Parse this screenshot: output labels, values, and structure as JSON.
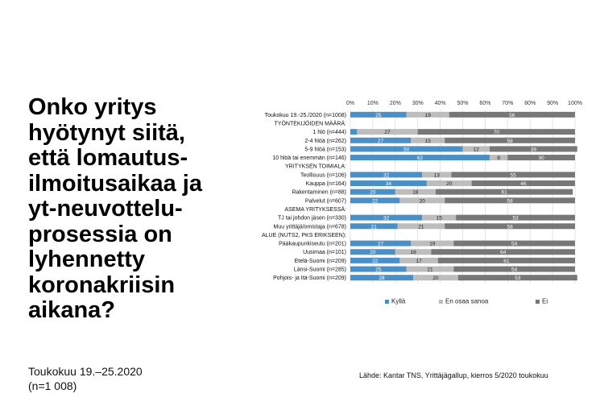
{
  "page": {
    "title": "Onko yritys\nhyötynyt siitä,\nettä lomautus-\nilmoitusaikaa ja\nyt-neuvottelu-\nprosessia on\nlyhennetty\nkoronakriisin\naikana?",
    "subtitle": "Toukokuu 19.–25.2020\n(n=1 008)",
    "source": "Lähde: Kantar TNS, Yrittäjägallup, kierros 5/2020 toukokuu"
  },
  "colors": {
    "kylla": "#4a90c8",
    "en_osaa": "#bdbdbd",
    "ei": "#777777",
    "grid": "#d9d9d9"
  },
  "chart_data": {
    "type": "bar",
    "orientation": "horizontal",
    "stacked": true,
    "xlim": [
      0,
      100
    ],
    "x_ticks": [
      "0%",
      "10%",
      "20%",
      "30%",
      "40%",
      "50%",
      "60%",
      "70%",
      "80%",
      "90%",
      "100%"
    ],
    "legend_position": "bottom",
    "series": [
      {
        "name": "Kyllä",
        "color": "#4a90c8"
      },
      {
        "name": "En osaa sanoa",
        "color": "#bdbdbd"
      },
      {
        "name": "Ei",
        "color": "#777777"
      }
    ],
    "rows": [
      {
        "label": "Toukokuu 19.-25./2020 (n=1008)",
        "values": [
          25,
          19,
          56
        ]
      },
      {
        "label": "TYÖNTEKIJÖIDEN MÄÄRÄ:",
        "header": true
      },
      {
        "label": "1 hlö (n=444)",
        "values": [
          3,
          27,
          70
        ],
        "labels": [
          "",
          "27",
          "70"
        ]
      },
      {
        "label": "2-4 hlöä (n=262)",
        "values": [
          27,
          15,
          58
        ]
      },
      {
        "label": "5-9 hlöä (n=153)",
        "values": [
          50,
          12,
          39
        ]
      },
      {
        "label": "10 hlöä tai enemmän (n=146)",
        "values": [
          62,
          8,
          30
        ]
      },
      {
        "label": "YRITYKSEN TOIMIALA:",
        "header": true
      },
      {
        "label": "Teollisuus (n=106)",
        "values": [
          32,
          13,
          55
        ]
      },
      {
        "label": "Kauppa (n=164)",
        "values": [
          34,
          20,
          46
        ]
      },
      {
        "label": "Rakentaminen (n=88)",
        "values": [
          20,
          18,
          61
        ]
      },
      {
        "label": "Palvelut (n=607)",
        "values": [
          22,
          20,
          58
        ]
      },
      {
        "label": "ASEMA YRITYKSESSÄ:",
        "header": true
      },
      {
        "label": "TJ tai johdon jäsen (n=330)",
        "values": [
          32,
          15,
          53
        ]
      },
      {
        "label": "Muu yrittäjä/omistaja (n=678)",
        "values": [
          21,
          21,
          58
        ]
      },
      {
        "label": "ALUE (NUTS2, PKS ERIKSEEN):",
        "header": true
      },
      {
        "label": "Pääkaupunkiseutu (n=201)",
        "values": [
          27,
          19,
          54
        ]
      },
      {
        "label": "Uusimaa (n=101)",
        "values": [
          20,
          16,
          64
        ]
      },
      {
        "label": "Etelä-Suomi (n=209)",
        "values": [
          22,
          17,
          61
        ]
      },
      {
        "label": "Länsi-Suomi (n=285)",
        "values": [
          25,
          21,
          54
        ]
      },
      {
        "label": "Pohjois- ja Itä-Suomi (n=209)",
        "values": [
          28,
          20,
          53
        ]
      }
    ]
  }
}
